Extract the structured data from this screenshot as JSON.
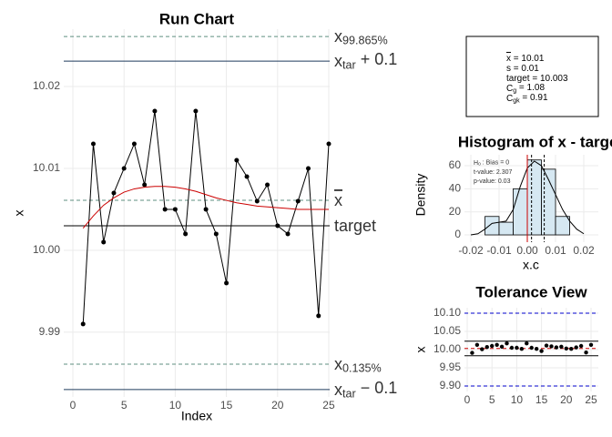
{
  "chart_data": [
    {
      "type": "line",
      "title": "Run Chart",
      "x_label": "Index",
      "y_label": "x",
      "x": [
        1,
        2,
        3,
        4,
        5,
        6,
        7,
        8,
        9,
        10,
        11,
        12,
        13,
        14,
        15,
        16,
        17,
        18,
        19,
        20,
        21,
        22,
        23,
        24,
        25
      ],
      "series": [
        {
          "color": "#000000",
          "markers": true,
          "values": [
            9.991,
            10.013,
            10.001,
            10.007,
            10.01,
            10.013,
            10.008,
            10.017,
            10.005,
            10.005,
            10.002,
            10.017,
            10.005,
            10.002,
            9.996,
            10.011,
            10.009,
            10.006,
            10.008,
            10.003,
            10.002,
            10.006,
            10.01,
            9.992,
            10.013
          ]
        },
        {
          "color": "#cc0000",
          "markers": false,
          "values": [
            10.0027,
            10.0042,
            10.0055,
            10.0064,
            10.0071,
            10.0075,
            10.0077,
            10.0078,
            10.0078,
            10.0077,
            10.0075,
            10.0072,
            10.0068,
            10.0064,
            10.0061,
            10.0058,
            10.0056,
            10.0054,
            10.0053,
            10.0052,
            10.0051,
            10.005,
            10.005,
            10.005,
            10.005
          ]
        }
      ],
      "hlines": [
        {
          "value": 10.0261,
          "color": "#5f8f80",
          "dashed": true,
          "text": "x",
          "sub": "99.865%"
        },
        {
          "value": 10.0231,
          "color": "#1f3b5c",
          "dashed": false,
          "text": "x",
          "sub": "tar",
          "rest": " + 0.1"
        },
        {
          "value": 10.0061,
          "color": "#5f8f80",
          "dashed": true,
          "text": "x",
          "overline": true
        },
        {
          "value": 10.003,
          "color": "#000000",
          "dashed": false,
          "text": "target"
        },
        {
          "value": 9.9861,
          "color": "#5f8f80",
          "dashed": true,
          "text": "x",
          "sub": "0.135%"
        },
        {
          "value": 9.983,
          "color": "#1f3b5c",
          "dashed": false,
          "text": "x",
          "sub": "tar",
          "rest": " − 0.1"
        }
      ],
      "xlim": [
        -0.89,
        25.09
      ],
      "ylim": [
        9.9821,
        10.027
      ],
      "xticks": [
        0,
        5,
        10,
        15,
        20,
        25
      ],
      "yticks": [
        9.99,
        {
          "value": 10.0,
          "label": "10.00"
        },
        10.01,
        10.02
      ],
      "grid": true
    },
    {
      "type": "histogram",
      "title": "Histogram of x - target",
      "x_label": "x.c",
      "y_label": "Density",
      "bins": [
        -0.015,
        -0.01,
        -0.005,
        0,
        0.005,
        0.01,
        0.015
      ],
      "values": [
        16,
        11,
        40,
        65,
        57,
        16
      ],
      "color": "#d6e8f2",
      "density": {
        "x": [
          -0.02,
          -0.0175,
          -0.015,
          -0.0125,
          -0.01,
          -0.0075,
          -0.005,
          -0.0025,
          0,
          0.0025,
          0.005,
          0.0075,
          0.01,
          0.0125,
          0.015,
          0.0175,
          0.02
        ],
        "values": [
          0,
          1,
          5,
          10,
          11,
          12,
          22,
          42,
          58,
          64,
          60,
          48,
          35,
          22,
          12,
          5,
          1
        ]
      },
      "vlines": [
        {
          "value": 0,
          "color": "#cc0000",
          "dashed": false
        },
        {
          "value": 0.0015,
          "color": "#000000",
          "dashed": true
        },
        {
          "value": 0.006,
          "color": "#000000",
          "dashed": true
        }
      ],
      "annotation": [
        {
          "text": "H",
          "sub": "0",
          "rest": " : Bias = 0"
        },
        {
          "text": "t-value: 2.307"
        },
        {
          "text": "p-value: 0.03"
        }
      ],
      "xlim": [
        -0.02226,
        0.02516
      ],
      "ylim": [
        -6.3,
        69.5
      ],
      "xticks": [
        -0.02,
        -0.01,
        {
          "value": 0,
          "label": "0.00"
        },
        0.01,
        0.02
      ],
      "yticks": [
        0,
        20,
        40,
        60
      ],
      "grid": true
    },
    {
      "type": "scatter",
      "title": "Tolerance View",
      "y_label": "x",
      "x": [
        1,
        2,
        3,
        4,
        5,
        6,
        7,
        8,
        9,
        10,
        11,
        12,
        13,
        14,
        15,
        16,
        17,
        18,
        19,
        20,
        21,
        22,
        23,
        24,
        25
      ],
      "values": [
        9.991,
        10.013,
        10.001,
        10.007,
        10.01,
        10.013,
        10.008,
        10.017,
        10.005,
        10.005,
        10.002,
        10.017,
        10.005,
        10.002,
        9.996,
        10.011,
        10.009,
        10.006,
        10.008,
        10.003,
        10.002,
        10.006,
        10.01,
        9.992,
        10.013
      ],
      "color": "#000000",
      "hlines": [
        {
          "value": 10.1,
          "color": "#0000cc",
          "dashed": true
        },
        {
          "value": 10.023,
          "color": "#000000",
          "dashed": false
        },
        {
          "value": 10.003,
          "color": "#cc0000",
          "dashed": true
        },
        {
          "value": 9.983,
          "color": "#000000",
          "dashed": false
        },
        {
          "value": 9.9,
          "color": "#0000cc",
          "dashed": true
        }
      ],
      "xlim": [
        -0.55,
        26.47
      ],
      "ylim": [
        9.885,
        10.115
      ],
      "xticks": [
        0,
        5,
        10,
        15,
        20,
        25
      ],
      "yticks": [
        {
          "value": 9.9,
          "label": "9.90"
        },
        9.95,
        {
          "value": 10.0,
          "label": "10.00"
        },
        10.05,
        {
          "value": 10.1,
          "label": "10.10"
        }
      ],
      "grid": true
    }
  ],
  "stats_box": [
    {
      "text": "x",
      "overline": true,
      "rest": " = 10.01"
    },
    {
      "text": "s = 0.01"
    },
    {
      "text": "target = 10.003"
    },
    {
      "text": "C",
      "sub": "g",
      "rest": " = 1.08"
    },
    {
      "text": "C",
      "sub": "gk",
      "rest": " = 0.91"
    }
  ]
}
